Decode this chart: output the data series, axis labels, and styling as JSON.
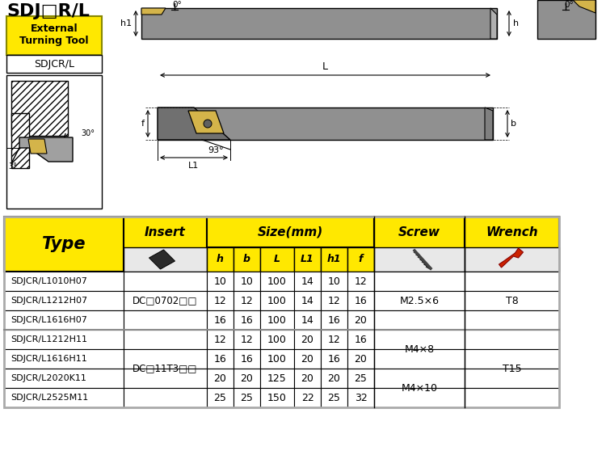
{
  "title": "SDJ□R/L",
  "label_box": "External\nTurning Tool",
  "label_box2": "SDJCR/L",
  "yellow": "#FFE800",
  "light_gray": "#E8E8E8",
  "tool_gray": "#909090",
  "tool_dark": "#707070",
  "insert_gold": "#D4B44A",
  "insert_groups": [
    [
      0,
      3,
      "DC□0702□□"
    ],
    [
      3,
      7,
      "DC□11T3□□"
    ]
  ],
  "screw_groups": [
    [
      0,
      3,
      "M2.5×6"
    ],
    [
      3,
      5,
      "M4×8"
    ],
    [
      5,
      7,
      "M4×10"
    ]
  ],
  "wrench_groups": [
    [
      0,
      3,
      "T8"
    ],
    [
      3,
      7,
      "T15"
    ]
  ],
  "row_data": [
    [
      "SDJCR/L1010H07",
      "10",
      "10",
      "100",
      "14",
      "10",
      "12"
    ],
    [
      "SDJCR/L1212H07",
      "12",
      "12",
      "100",
      "14",
      "12",
      "16"
    ],
    [
      "SDJCR/L1616H07",
      "16",
      "16",
      "100",
      "14",
      "16",
      "20"
    ],
    [
      "SDJCR/L1212H11",
      "12",
      "12",
      "100",
      "20",
      "12",
      "16"
    ],
    [
      "SDJCR/L1616H11",
      "16",
      "16",
      "100",
      "20",
      "16",
      "20"
    ],
    [
      "SDJCR/L2020K11",
      "20",
      "20",
      "125",
      "20",
      "20",
      "25"
    ],
    [
      "SDJCR/L2525M11",
      "25",
      "25",
      "150",
      "22",
      "25",
      "32"
    ]
  ]
}
